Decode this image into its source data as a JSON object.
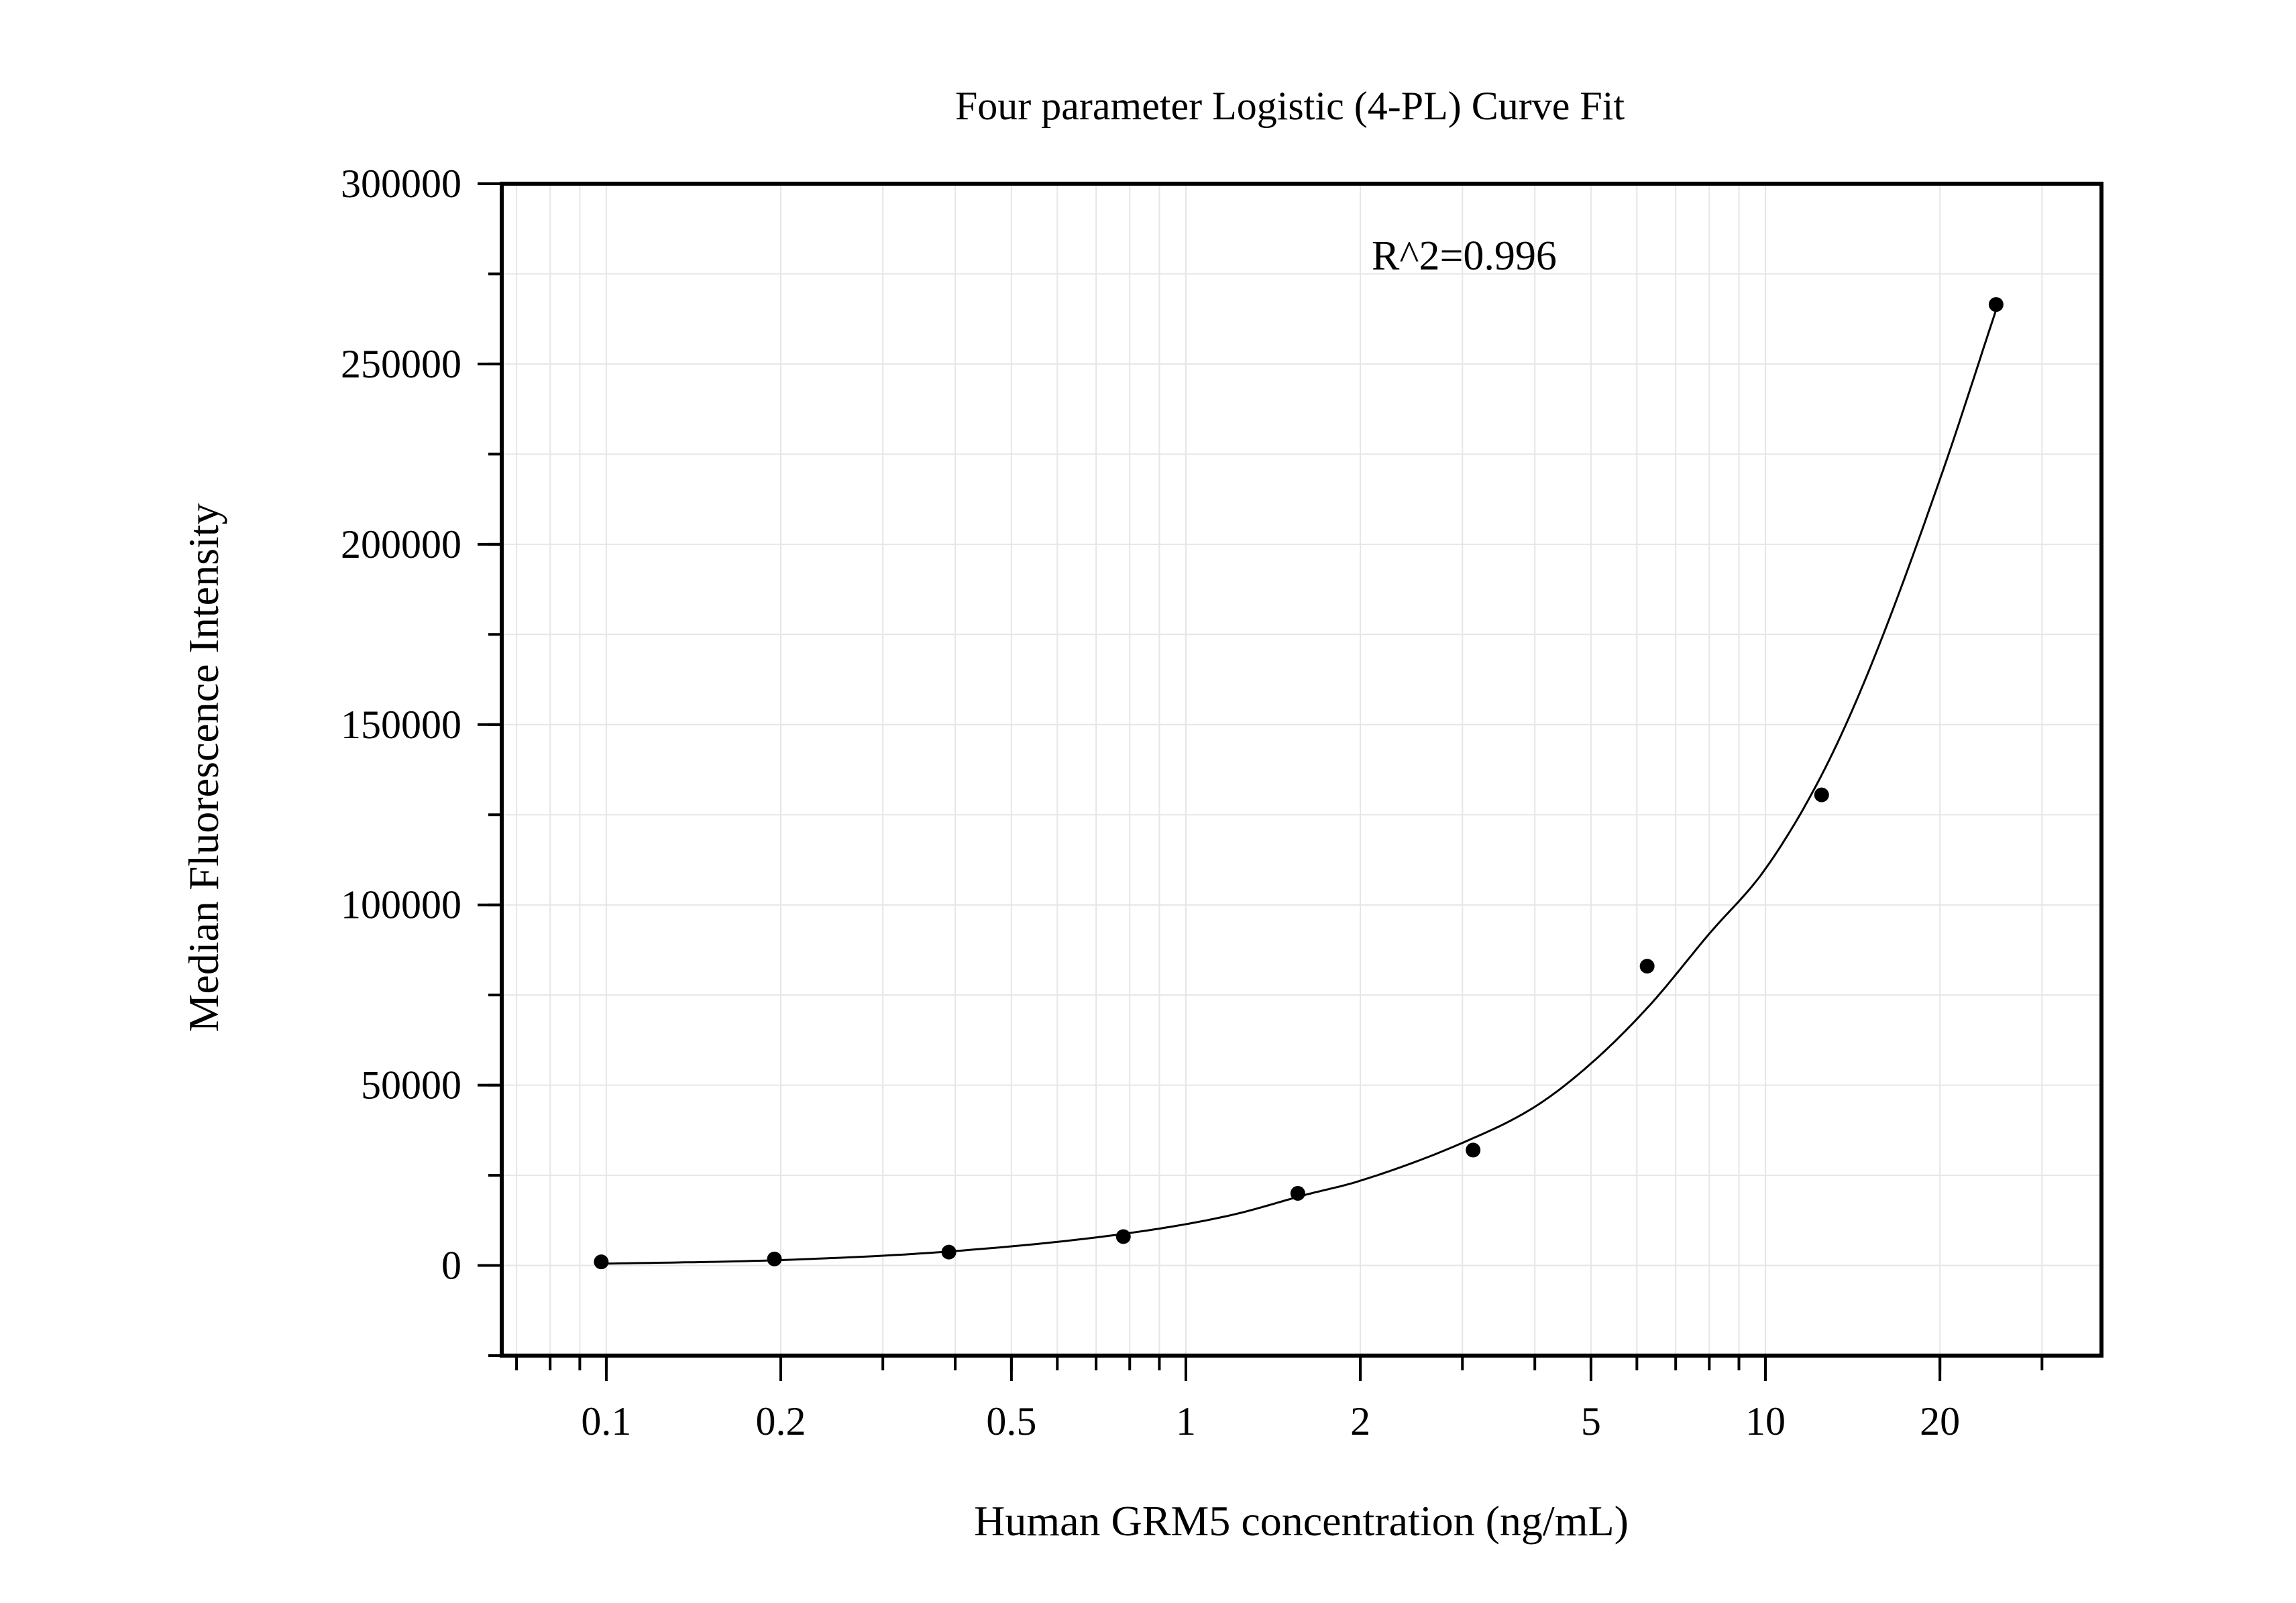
{
  "chart_data": {
    "type": "scatter",
    "title": "Four parameter Logistic (4-PL) Curve Fit",
    "xlabel": "Human GRM5 concentration (ng/mL)",
    "ylabel": "Median Fluorescence Intensity",
    "annotation": "R^2=0.996",
    "x_scale": "log",
    "xlim": [
      0.066,
      38
    ],
    "ylim": [
      -25000,
      300000
    ],
    "x_ticks": [
      {
        "value": 0.1,
        "label": "0.1"
      },
      {
        "value": 0.2,
        "label": "0.2"
      },
      {
        "value": 0.5,
        "label": "0.5"
      },
      {
        "value": 1,
        "label": "1"
      },
      {
        "value": 2,
        "label": "2"
      },
      {
        "value": 5,
        "label": "5"
      },
      {
        "value": 10,
        "label": "10"
      },
      {
        "value": 20,
        "label": "20"
      }
    ],
    "y_ticks": [
      {
        "value": 0,
        "label": "0"
      },
      {
        "value": 50000,
        "label": "50000"
      },
      {
        "value": 100000,
        "label": "100000"
      },
      {
        "value": 150000,
        "label": "150000"
      },
      {
        "value": 200000,
        "label": "200000"
      },
      {
        "value": 250000,
        "label": "250000"
      },
      {
        "value": 300000,
        "label": "300000"
      }
    ],
    "grid": true,
    "marker_color": "#000000",
    "line_color": "#000000",
    "grid_color": "#e6e6e6",
    "points": [
      {
        "x": 0.098,
        "y": 1000
      },
      {
        "x": 0.195,
        "y": 1800
      },
      {
        "x": 0.39,
        "y": 3700
      },
      {
        "x": 0.78,
        "y": 8000
      },
      {
        "x": 1.56,
        "y": 20000
      },
      {
        "x": 3.13,
        "y": 32000
      },
      {
        "x": 6.25,
        "y": 83000
      },
      {
        "x": 12.5,
        "y": 130500
      },
      {
        "x": 25,
        "y": 266500
      }
    ],
    "fit_curve": [
      {
        "x": 0.1,
        "y": 500
      },
      {
        "x": 0.2,
        "y": 1500
      },
      {
        "x": 0.4,
        "y": 4000
      },
      {
        "x": 0.8,
        "y": 9000
      },
      {
        "x": 1.2,
        "y": 14000
      },
      {
        "x": 1.6,
        "y": 19500
      },
      {
        "x": 2.0,
        "y": 23500
      },
      {
        "x": 3.0,
        "y": 34000
      },
      {
        "x": 4.0,
        "y": 44000
      },
      {
        "x": 5.0,
        "y": 56000
      },
      {
        "x": 6.3,
        "y": 72000
      },
      {
        "x": 8.0,
        "y": 92000
      },
      {
        "x": 10.0,
        "y": 110000
      },
      {
        "x": 12.5,
        "y": 136000
      },
      {
        "x": 15.0,
        "y": 164000
      },
      {
        "x": 20.0,
        "y": 218000
      },
      {
        "x": 25.0,
        "y": 265000
      }
    ]
  }
}
